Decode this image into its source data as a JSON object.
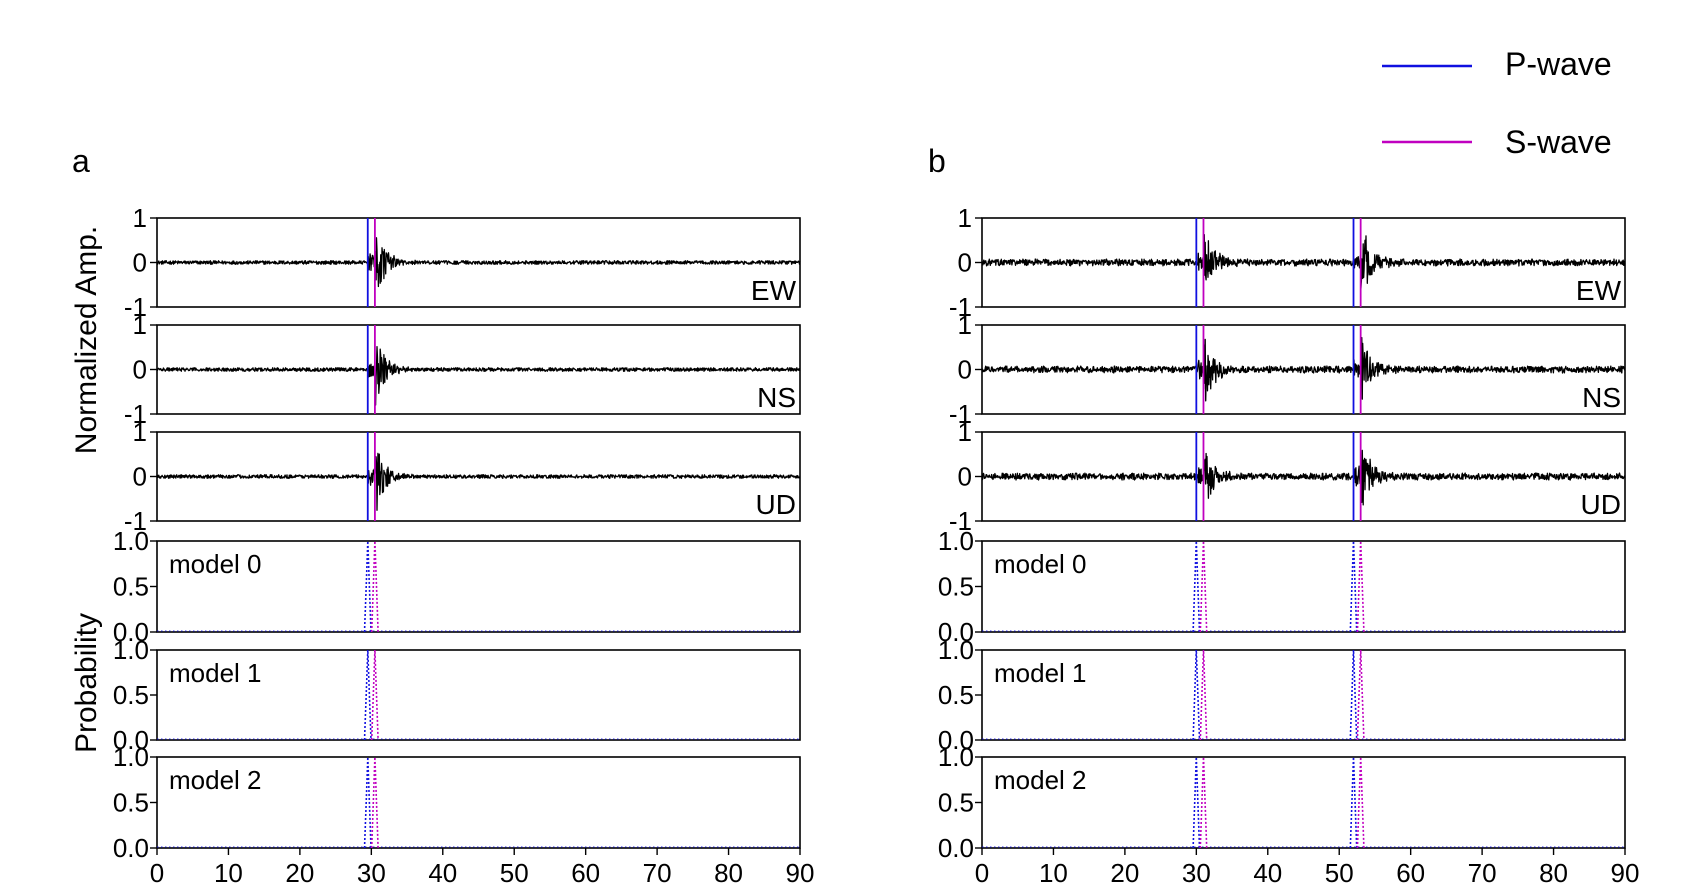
{
  "legend": {
    "p_label": "P-wave",
    "s_label": "S-wave",
    "p_color": "#1010e0",
    "s_color": "#c000c0",
    "placement": "top-right"
  },
  "labels": {
    "amp_ylabel": "Normalized Amp.",
    "prob_ylabel": "Probability"
  },
  "chart_data": [
    {
      "type": "line",
      "panel": "a",
      "xlim": [
        0,
        90
      ],
      "xticks": [
        0,
        10,
        20,
        30,
        40,
        50,
        60,
        70,
        80,
        90
      ],
      "p_picks": [
        29.5
      ],
      "s_picks": [
        30.5
      ],
      "waveforms": [
        {
          "name": "EW",
          "ylim": [
            -1,
            1
          ],
          "yticks": [
            "1",
            "0",
            "-1"
          ]
        },
        {
          "name": "NS",
          "ylim": [
            -1,
            1
          ],
          "yticks": [
            "1",
            "0",
            "-1"
          ]
        },
        {
          "name": "UD",
          "ylim": [
            -1,
            1
          ],
          "yticks": [
            "1",
            "0",
            "-1"
          ]
        }
      ],
      "probabilities": [
        {
          "name": "model 0",
          "ylim": [
            0,
            1
          ],
          "yticks": [
            "1.0",
            "0.5",
            "0.0"
          ]
        },
        {
          "name": "model 1",
          "ylim": [
            0,
            1
          ],
          "yticks": [
            "1.0",
            "0.5",
            "0.0"
          ]
        },
        {
          "name": "model 2",
          "ylim": [
            0,
            1
          ],
          "yticks": [
            "1.0",
            "0.5",
            "0.0"
          ]
        }
      ]
    },
    {
      "type": "line",
      "panel": "b",
      "xlim": [
        0,
        90
      ],
      "xticks": [
        0,
        10,
        20,
        30,
        40,
        50,
        60,
        70,
        80,
        90
      ],
      "p_picks": [
        30,
        52
      ],
      "s_picks": [
        31,
        53
      ],
      "waveforms": [
        {
          "name": "EW",
          "ylim": [
            -1,
            1
          ],
          "yticks": [
            "1",
            "0",
            "-1"
          ]
        },
        {
          "name": "NS",
          "ylim": [
            -1,
            1
          ],
          "yticks": [
            "1",
            "0",
            "-1"
          ]
        },
        {
          "name": "UD",
          "ylim": [
            -1,
            1
          ],
          "yticks": [
            "1",
            "0",
            "-1"
          ]
        }
      ],
      "probabilities": [
        {
          "name": "model 0",
          "ylim": [
            0,
            1
          ],
          "yticks": [
            "1.0",
            "0.5",
            "0.0"
          ]
        },
        {
          "name": "model 1",
          "ylim": [
            0,
            1
          ],
          "yticks": [
            "1.0",
            "0.5",
            "0.0"
          ]
        },
        {
          "name": "model 2",
          "ylim": [
            0,
            1
          ],
          "yticks": [
            "1.0",
            "0.5",
            "0.0"
          ]
        }
      ]
    }
  ]
}
